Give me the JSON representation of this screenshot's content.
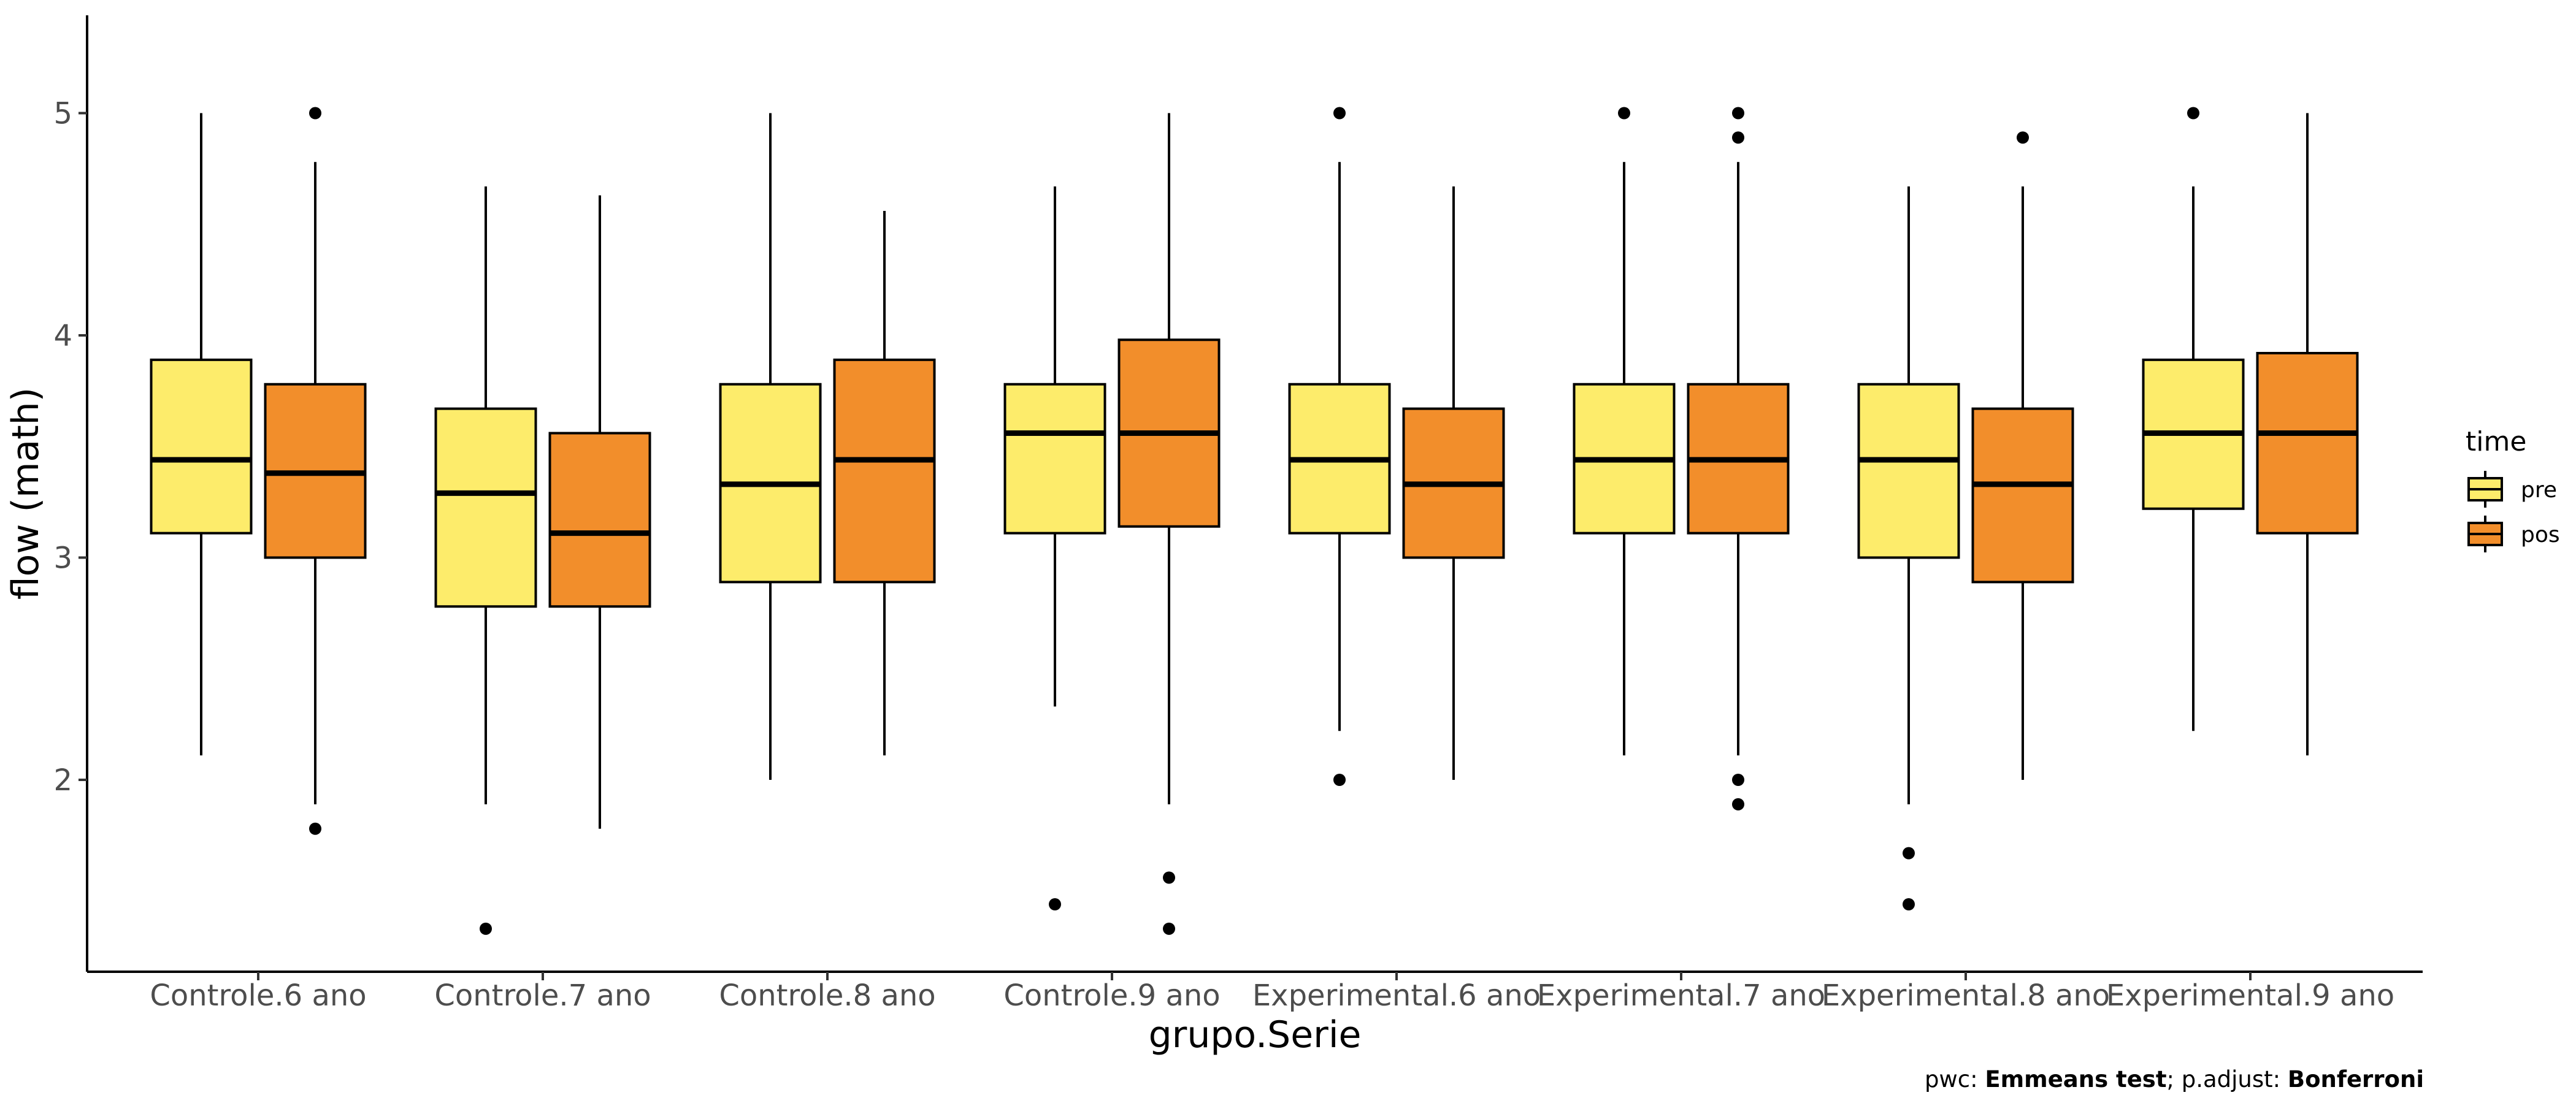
{
  "chart_data": {
    "type": "boxplot",
    "xlabel": "grupo.Serie",
    "ylabel": "flow (math)",
    "ylim": [
      1.2,
      5.45
    ],
    "yticks": [
      2,
      3,
      4,
      5
    ],
    "categories": [
      "Controle.6 ano",
      "Controle.7 ano",
      "Controle.8 ano",
      "Controle.9 ano",
      "Experimental.6 ano",
      "Experimental.7 ano",
      "Experimental.8 ano",
      "Experimental.9 ano"
    ],
    "legend": {
      "title": "time",
      "position": "right"
    },
    "grid": false,
    "series": [
      {
        "name": "pre",
        "color": "#FDEC6B",
        "boxes": [
          {
            "min": 2.11,
            "q1": 3.11,
            "median": 3.44,
            "q3": 3.89,
            "max": 5.0,
            "outliers": []
          },
          {
            "min": 1.89,
            "q1": 2.78,
            "median": 3.29,
            "q3": 3.67,
            "max": 4.67,
            "outliers": [
              1.33
            ]
          },
          {
            "min": 2.0,
            "q1": 2.89,
            "median": 3.33,
            "q3": 3.78,
            "max": 5.0,
            "outliers": []
          },
          {
            "min": 2.33,
            "q1": 3.11,
            "median": 3.56,
            "q3": 3.78,
            "max": 4.67,
            "outliers": [
              1.44
            ]
          },
          {
            "min": 2.22,
            "q1": 3.11,
            "median": 3.44,
            "q3": 3.78,
            "max": 4.78,
            "outliers": [
              5.0,
              2.0
            ]
          },
          {
            "min": 2.11,
            "q1": 3.11,
            "median": 3.44,
            "q3": 3.78,
            "max": 4.78,
            "outliers": [
              5.0
            ]
          },
          {
            "min": 1.89,
            "q1": 3.0,
            "median": 3.44,
            "q3": 3.78,
            "max": 4.67,
            "outliers": [
              1.67,
              1.44
            ]
          },
          {
            "min": 2.22,
            "q1": 3.22,
            "median": 3.56,
            "q3": 3.89,
            "max": 4.67,
            "outliers": [
              5.0
            ]
          }
        ]
      },
      {
        "name": "pos",
        "color": "#F28E2B",
        "boxes": [
          {
            "min": 1.89,
            "q1": 3.0,
            "median": 3.38,
            "q3": 3.78,
            "max": 4.78,
            "outliers": [
              5.0,
              1.78
            ]
          },
          {
            "min": 1.78,
            "q1": 2.78,
            "median": 3.11,
            "q3": 3.56,
            "max": 4.63,
            "outliers": []
          },
          {
            "min": 2.11,
            "q1": 2.89,
            "median": 3.44,
            "q3": 3.89,
            "max": 4.56,
            "outliers": []
          },
          {
            "min": 1.89,
            "q1": 3.14,
            "median": 3.56,
            "q3": 3.98,
            "max": 5.0,
            "outliers": [
              1.56,
              1.33
            ]
          },
          {
            "min": 2.0,
            "q1": 3.0,
            "median": 3.33,
            "q3": 3.67,
            "max": 4.67,
            "outliers": []
          },
          {
            "min": 2.11,
            "q1": 3.11,
            "median": 3.44,
            "q3": 3.78,
            "max": 4.78,
            "outliers": [
              5.0,
              4.89,
              2.0,
              1.89
            ]
          },
          {
            "min": 2.0,
            "q1": 2.89,
            "median": 3.33,
            "q3": 3.67,
            "max": 4.67,
            "outliers": [
              4.89
            ]
          },
          {
            "min": 2.11,
            "q1": 3.11,
            "median": 3.56,
            "q3": 3.92,
            "max": 5.0,
            "outliers": []
          }
        ]
      }
    ],
    "caption": {
      "pwc_label": "pwc: ",
      "test": "Emmeans test",
      "sep": "; p.adjust: ",
      "adjust": "Bonferroni"
    }
  }
}
